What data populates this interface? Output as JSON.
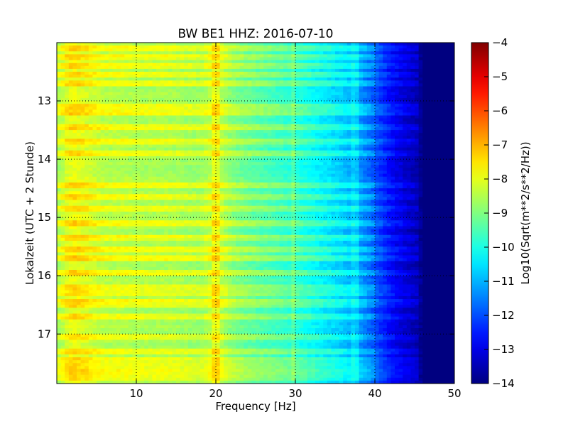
{
  "chart_data": {
    "type": "heatmap",
    "title": "BW BE1 HHZ: 2016-07-10",
    "xlabel": "Frequency [Hz]",
    "ylabel": "Lokalzeit (UTC + 2 Stunde)",
    "colorbar_label": "Log10(Sqrt(m**2/s**2/Hz))",
    "colormap": "jet",
    "xlim": [
      0,
      50
    ],
    "ylim": [
      17.85,
      12.0
    ],
    "y_inverted": true,
    "grid": "dotted",
    "clim": [
      -14,
      -4
    ],
    "x_ticks": [
      10,
      20,
      30,
      40,
      50
    ],
    "y_ticks": [
      13,
      14,
      15,
      16,
      17
    ],
    "cbar_ticks": [
      -4,
      -5,
      -6,
      -7,
      -8,
      -9,
      -10,
      -11,
      -12,
      -13,
      -14
    ],
    "profile": {
      "freq": [
        0.5,
        1,
        2,
        4,
        6,
        8,
        10,
        12,
        14,
        16,
        18,
        20,
        22,
        24,
        26,
        28,
        30,
        32,
        34,
        36,
        38,
        40,
        42,
        44,
        45.5,
        46,
        50
      ],
      "level": [
        -8.6,
        -8.2,
        -7.9,
        -8.2,
        -8.5,
        -8.5,
        -8.6,
        -8.6,
        -8.6,
        -8.7,
        -8.8,
        -8.3,
        -9.0,
        -9.3,
        -9.5,
        -9.7,
        -9.9,
        -10.2,
        -10.5,
        -10.8,
        -11.3,
        -12.0,
        -12.8,
        -13.3,
        -13.6,
        -14.0,
        -14.0
      ]
    },
    "bright_bands_hours": [
      12.1,
      12.25,
      12.4,
      12.55,
      12.7,
      13.1,
      13.2,
      13.45,
      13.7,
      13.9,
      14.45,
      14.65,
      14.85,
      15.1,
      15.35,
      15.55,
      15.7,
      15.95,
      16.2,
      16.3,
      16.45,
      16.5,
      16.7,
      17.05,
      17.3,
      17.45,
      17.55,
      17.65,
      17.75
    ],
    "spectral_lines_hz": [
      20.0,
      29.8,
      37.5
    ]
  }
}
